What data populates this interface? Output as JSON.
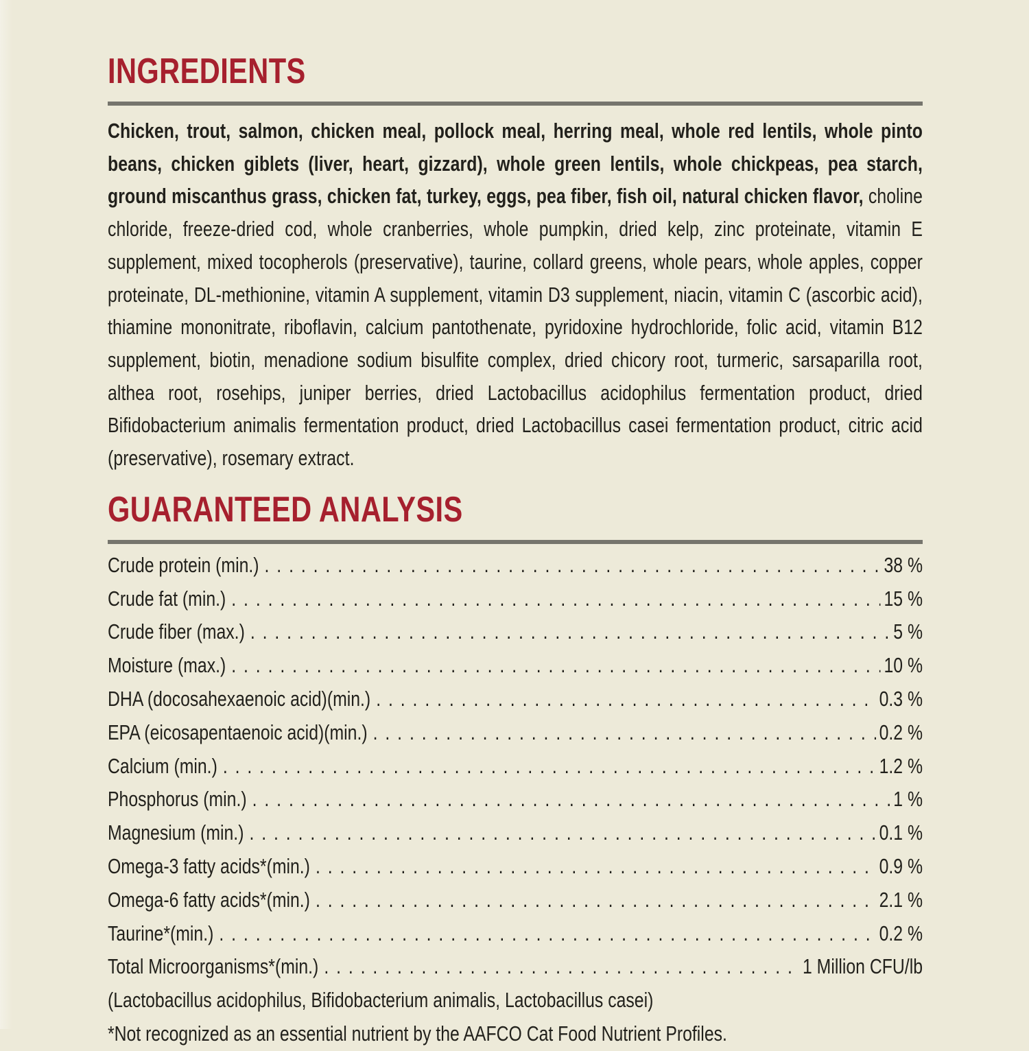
{
  "page": {
    "background_color": "#edead9",
    "accent_color": "#a6202e",
    "rule_color": "#76756d",
    "text_color": "#22211c"
  },
  "ingredients": {
    "heading": "INGREDIENTS",
    "primary": "Chicken, trout, salmon, chicken meal, pollock meal, herring meal, whole red lentils, whole pinto beans, chicken giblets (liver, heart, gizzard), whole green lentils, whole chickpeas, pea starch, ground miscanthus grass, chicken fat, turkey, eggs, pea fiber, fish oil, natural chicken flavor,",
    "secondary": "choline chloride, freeze-dried cod, whole cranberries, whole pumpkin, dried kelp, zinc proteinate, vitamin E supplement, mixed tocopherols (preservative), taurine, collard greens, whole pears, whole apples, copper proteinate, DL-methionine, vitamin A supplement, vitamin D3 supplement, niacin, vitamin C (ascorbic acid), thiamine mononitrate, riboflavin, calcium pantothenate, pyridoxine hydrochloride, folic acid, vitamin B12 supplement, biotin, menadione sodium bisulfite complex, dried chicory root, turmeric, sarsaparilla root, althea root, rosehips, juniper berries, dried Lactobacillus acidophilus fermentation product, dried Bifidobacterium animalis fermentation product, dried Lactobacillus casei fermentation product, citric acid (preservative), rosemary extract."
  },
  "analysis": {
    "heading": "GUARANTEED ANALYSIS",
    "rows": [
      {
        "label": "Crude protein (min.)",
        "value": "38 %"
      },
      {
        "label": "Crude fat (min.)",
        "value": "15 %"
      },
      {
        "label": "Crude fiber (max.)",
        "value": "5 %"
      },
      {
        "label": "Moisture (max.)",
        "value": "10 %"
      },
      {
        "label": "DHA (docosahexaenoic acid)(min.)",
        "value": "0.3 %"
      },
      {
        "label": "EPA (eicosapentaenoic acid)(min.)",
        "value": "0.2 %"
      },
      {
        "label": "Calcium (min.)",
        "value": "1.2 %"
      },
      {
        "label": "Phosphorus (min.)",
        "value": "1 %"
      },
      {
        "label": "Magnesium (min.)",
        "value": "0.1 %"
      },
      {
        "label": "Omega-3 fatty acids*(min.)",
        "value": "0.9 %"
      },
      {
        "label": "Omega-6 fatty acids*(min.)",
        "value": "2.1 %"
      },
      {
        "label": "Taurine*(min.)",
        "value": "0.2 %"
      },
      {
        "label": "Total Microorganisms*(min.)",
        "value": "1 Million CFU/lb"
      }
    ],
    "microorganisms_detail": "(Lactobacillus acidophilus, Bifidobacterium animalis, Lactobacillus casei)",
    "footnote": "*Not recognized as an essential nutrient by the AAFCO Cat Food Nutrient Profiles."
  }
}
